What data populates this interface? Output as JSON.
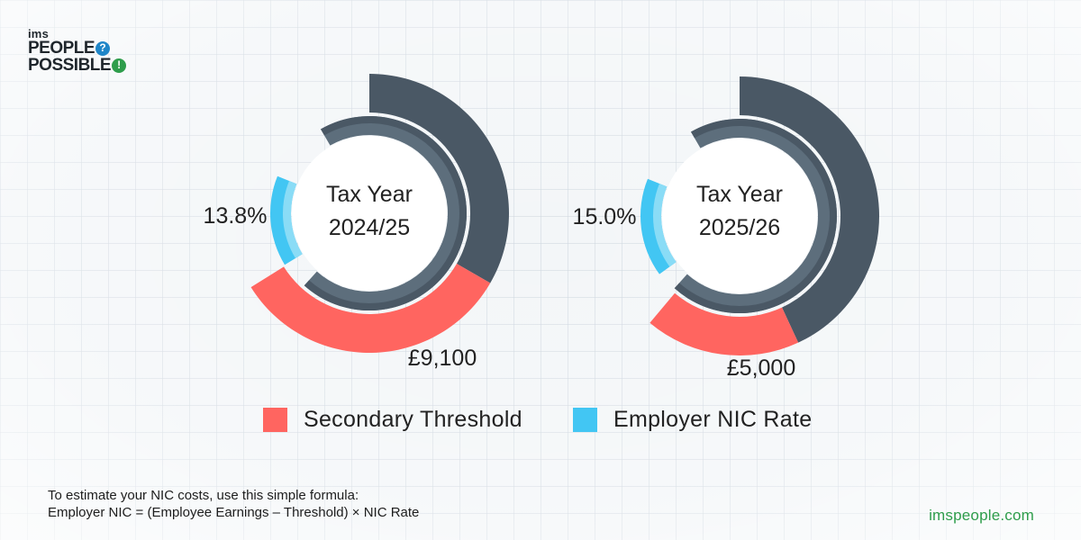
{
  "brand": {
    "small": "ims",
    "line1": "PEOPLE",
    "line1_badge": "?",
    "line2": "POSSIBLE",
    "line2_badge": "!",
    "website": "imspeople.com"
  },
  "colors": {
    "threshold": "#ff6560",
    "rate": "#42c6f3",
    "rate_light": "#8adcf6",
    "outer_track": "#4a5865",
    "inner_track": "#5d6e7c",
    "brand_green": "#2e9d4b",
    "brand_blue": "#1f86c8"
  },
  "chart_data": [
    {
      "type": "donut",
      "title_line1": "Tax Year",
      "title_line2": "2024/25",
      "series": [
        {
          "name": "Secondary Threshold",
          "value": 9100,
          "label": "£9,100"
        },
        {
          "name": "Employer NIC Rate",
          "value": 13.8,
          "label": "13.8%"
        }
      ]
    },
    {
      "type": "donut",
      "title_line1": "Tax Year",
      "title_line2": "2025/26",
      "series": [
        {
          "name": "Secondary Threshold",
          "value": 5000,
          "label": "£5,000"
        },
        {
          "name": "Employer NIC Rate",
          "value": 15.0,
          "label": "15.0%"
        }
      ]
    }
  ],
  "legend": [
    {
      "name": "Secondary Threshold",
      "color": "#ff6560"
    },
    {
      "name": "Employer NIC Rate",
      "color": "#42c6f3"
    }
  ],
  "formula": {
    "line1": "To estimate your NIC costs, use this simple formula:",
    "line2": "Employer NIC = (Employee Earnings – Threshold) × NIC Rate"
  }
}
